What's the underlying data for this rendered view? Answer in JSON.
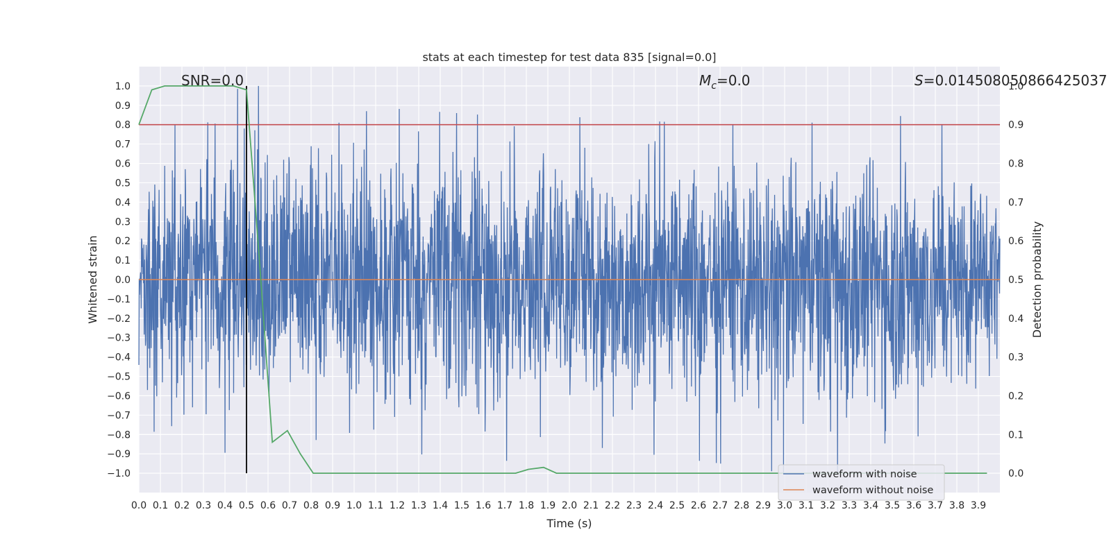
{
  "chart_data": {
    "type": "line",
    "title": "stats at each timestep for test data 835 [signal=0.0]",
    "xlabel": "Time (s)",
    "ylabel": "Whitened strain",
    "y2label": "Detection probability",
    "xlim": [
      0.0,
      4.0
    ],
    "ylim": [
      -1.1,
      1.1
    ],
    "y2lim": [
      -0.05,
      1.05
    ],
    "x_ticks": [
      "0.0",
      "0.1",
      "0.2",
      "0.3",
      "0.4",
      "0.5",
      "0.6",
      "0.7",
      "0.8",
      "0.9",
      "1.0",
      "1.1",
      "1.2",
      "1.3",
      "1.4",
      "1.5",
      "1.6",
      "1.7",
      "1.8",
      "1.9",
      "2.0",
      "2.1",
      "2.2",
      "2.3",
      "2.4",
      "2.5",
      "2.6",
      "2.7",
      "2.8",
      "2.9",
      "3.0",
      "3.1",
      "3.2",
      "3.3",
      "3.4",
      "3.5",
      "3.6",
      "3.7",
      "3.8",
      "3.9"
    ],
    "y_ticks": [
      "1.0",
      "0.9",
      "0.8",
      "0.7",
      "0.6",
      "0.5",
      "0.4",
      "0.3",
      "0.2",
      "0.1",
      "0.0",
      "−0.1",
      "−0.2",
      "−0.3",
      "−0.4",
      "−0.5",
      "−0.6",
      "−0.7",
      "−0.8",
      "−0.9",
      "−1.0"
    ],
    "y2_ticks": [
      "1.0",
      "0.9",
      "0.8",
      "0.7",
      "0.6",
      "0.5",
      "0.4",
      "0.3",
      "0.2",
      "0.1",
      "0.0"
    ],
    "grid": true,
    "legend_position": "lower-right",
    "annotations": {
      "snr": "SNR=0.0",
      "mc_symbol": "M",
      "mc_sub": "c",
      "mc_value": "=0.0",
      "s_symbol": "S",
      "s_value": "=0.014508050866425037"
    },
    "series": [
      {
        "name": "waveform with noise",
        "color": "#4c72b0",
        "axis": "left",
        "kind": "dense noise, amplitude mostly within ±0.6, peaks reaching about ±1.0",
        "envelope": {
          "x": [
            0.0,
            0.08,
            0.14,
            0.5,
            0.68,
            0.93,
            1.1,
            1.6,
            1.77,
            1.88,
            2.02,
            2.7,
            3.0,
            3.6,
            3.97
          ],
          "upper": [
            0.3,
            0.8,
            0.87,
            1.0,
            1.0,
            0.81,
            0.89,
            0.85,
            0.89,
            0.81,
            0.84,
            0.8,
            0.8,
            0.85,
            0.7
          ],
          "lower": [
            -0.68,
            -0.8,
            -0.75,
            -0.95,
            -0.8,
            -0.85,
            -0.83,
            -1.0,
            -0.9,
            -0.8,
            -0.85,
            -0.95,
            -1.0,
            -1.0,
            -0.6
          ]
        }
      },
      {
        "name": "waveform without noise",
        "color": "#dd8452",
        "axis": "left",
        "x": [
          0.0,
          4.0
        ],
        "y": [
          0.0,
          0.0
        ]
      },
      {
        "name": "",
        "color": "#55a868",
        "axis": "right",
        "x": [
          0.0,
          0.06,
          0.12,
          0.19,
          0.25,
          0.31,
          0.38,
          0.44,
          0.5,
          0.56,
          0.62,
          0.69,
          0.75,
          0.81,
          0.88,
          0.94,
          1.0,
          1.5,
          1.75,
          1.81,
          1.88,
          1.94,
          2.0,
          2.5,
          3.0,
          3.5,
          3.94
        ],
        "y": [
          0.9,
          0.99,
          1.0,
          1.0,
          1.0,
          1.0,
          1.0,
          1.0,
          0.99,
          0.55,
          0.08,
          0.11,
          0.05,
          0.0,
          0.0,
          0.0,
          0.0,
          0.0,
          0.0,
          0.01,
          0.015,
          0.0,
          0.0,
          0.0,
          0.0,
          0.0,
          0.0
        ]
      }
    ],
    "reference_lines": [
      {
        "orientation": "horizontal",
        "axis": "right",
        "value": 0.9,
        "color": "#c44e52"
      },
      {
        "orientation": "vertical",
        "value": 0.5,
        "y_range": [
          -1.0,
          1.0
        ],
        "color": "#000000"
      }
    ]
  }
}
